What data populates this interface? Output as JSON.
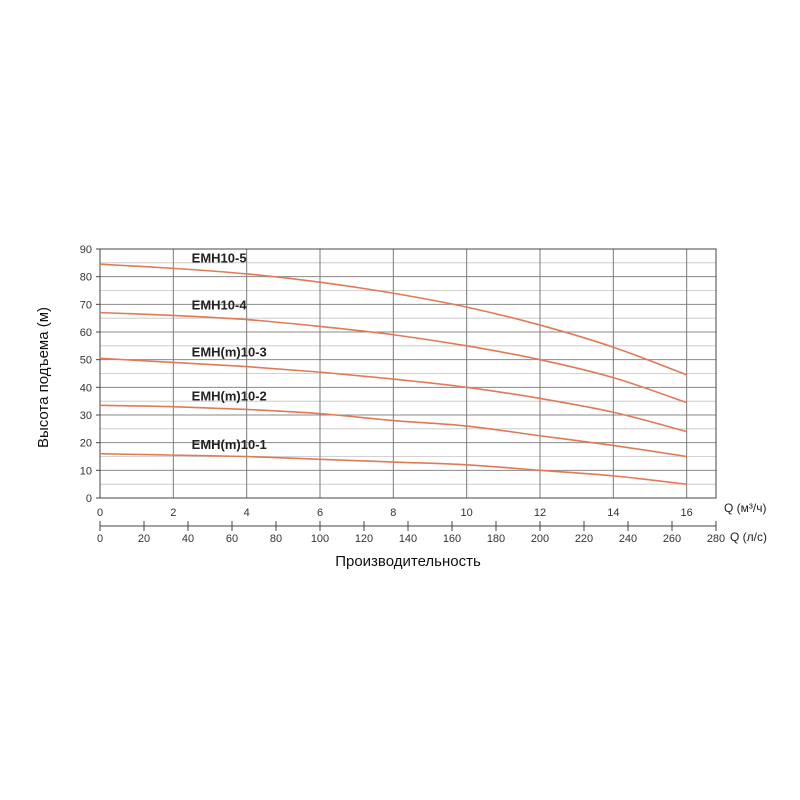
{
  "chart_data": {
    "type": "line",
    "title": "",
    "xlabel": "Производительность",
    "ylabel": "Высота подъема (м)",
    "x_unit_label": "Q (м³/ч)",
    "x2_unit_label": "Q (л/с)",
    "xlim": [
      0,
      16.8
    ],
    "ylim": [
      0,
      90
    ],
    "grid": true,
    "x_ticks": [
      "0",
      "2",
      "4",
      "6",
      "8",
      "10",
      "12",
      "14",
      "16"
    ],
    "x2_ticks": [
      "0",
      "20",
      "40",
      "60",
      "80",
      "100",
      "120",
      "140",
      "160",
      "180",
      "200",
      "220",
      "240",
      "260",
      "280"
    ],
    "y_ticks": [
      "0",
      "10",
      "20",
      "30",
      "40",
      "50",
      "60",
      "70",
      "80",
      "90"
    ],
    "line_color": "#e07a55",
    "series": [
      {
        "name": "EMH10-5",
        "x": [
          0,
          2,
          4,
          6,
          8,
          10,
          12,
          14,
          16
        ],
        "y": [
          84.5,
          83,
          81,
          78,
          74,
          69,
          62.5,
          54.5,
          44.5
        ]
      },
      {
        "name": "EMH10-4",
        "x": [
          0,
          2,
          4,
          6,
          8,
          10,
          12,
          14,
          16
        ],
        "y": [
          67,
          66,
          64.5,
          62,
          59,
          55,
          50,
          43.5,
          34.5
        ]
      },
      {
        "name": "EMH(m)10-3",
        "x": [
          0,
          2,
          4,
          6,
          8,
          10,
          12,
          14,
          16
        ],
        "y": [
          50.5,
          49,
          47.5,
          45.5,
          43,
          40,
          36,
          31,
          24
        ]
      },
      {
        "name": "EMH(m)10-2",
        "x": [
          0,
          2,
          4,
          6,
          8,
          10,
          12,
          14,
          16
        ],
        "y": [
          33.5,
          33,
          32,
          30.5,
          28,
          26,
          22.5,
          19,
          15
        ]
      },
      {
        "name": "EMH(m)10-1",
        "x": [
          0,
          2,
          4,
          6,
          8,
          10,
          12,
          14,
          16
        ],
        "y": [
          16,
          15.5,
          15,
          14,
          13,
          12,
          10,
          8,
          5
        ]
      }
    ]
  }
}
